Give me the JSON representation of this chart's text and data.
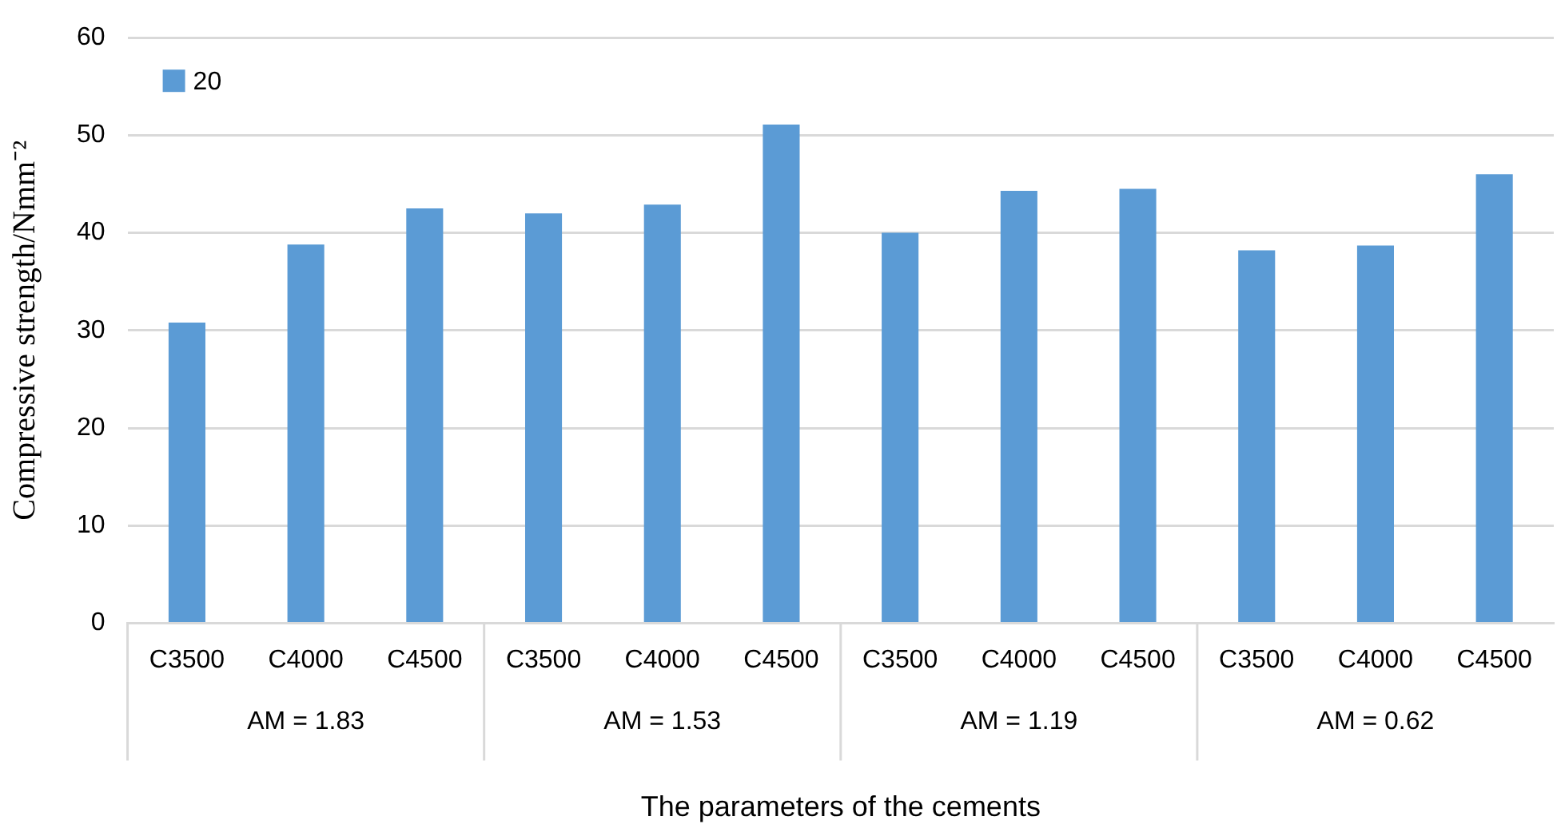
{
  "chart_data": {
    "type": "bar",
    "xlabel": "The parameters of the cements",
    "ylabel": "Compressive strength/Nmm⁻²",
    "categories": [
      "C3500",
      "C4000",
      "C4500",
      "C3500",
      "C4000",
      "C4500",
      "C3500",
      "C4000",
      "C4500",
      "C3500",
      "C4000",
      "C4500"
    ],
    "series": [
      {
        "name": "20",
        "color": "#5b9bd5",
        "values": [
          30.8,
          38.8,
          42.5,
          42.0,
          42.9,
          51.1,
          40.0,
          44.3,
          44.5,
          38.2,
          38.7,
          46.0
        ]
      }
    ],
    "annotations": [
      "AM = 1.83",
      "AM = 1.53",
      "AM = 1.19",
      "AM = 0.62"
    ],
    "ylim": [
      0,
      60
    ],
    "yticks": [
      0,
      10,
      20,
      30,
      40,
      50,
      60
    ],
    "grid": "y",
    "legend": "top left"
  }
}
